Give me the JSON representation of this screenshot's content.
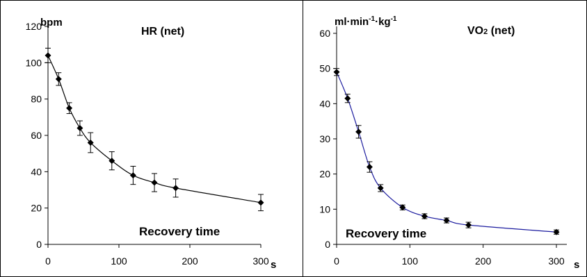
{
  "chart_data": [
    {
      "type": "line",
      "title": "HR (net)",
      "ylabel": "bpm",
      "xlabel": "s",
      "annotation": "Recovery time",
      "xlim": [
        0,
        300
      ],
      "ylim": [
        0,
        120
      ],
      "xticks": [
        0,
        100,
        200,
        300
      ],
      "yticks": [
        0,
        20,
        40,
        60,
        80,
        100,
        120
      ],
      "line_color": "#000000",
      "series": [
        {
          "x": [
            0,
            15,
            30,
            45,
            60,
            90,
            120,
            150,
            180,
            300
          ],
          "y": [
            104,
            91,
            75,
            64,
            56,
            46,
            38,
            34,
            31,
            23
          ],
          "err": [
            4,
            3.5,
            3,
            4,
            5.5,
            5,
            5,
            5,
            5,
            4.5
          ]
        }
      ]
    },
    {
      "type": "line",
      "title_main": "VO",
      "title_sub": "2",
      "title_rest": " (net)",
      "ylabel_parts": [
        "ml·min",
        "-1",
        "·kg",
        "-1"
      ],
      "xlabel": "s",
      "annotation": "Recovery time",
      "xlim": [
        0,
        300
      ],
      "ylim": [
        0,
        60
      ],
      "xticks": [
        0,
        100,
        200,
        300
      ],
      "yticks": [
        0,
        10,
        20,
        30,
        40,
        50,
        60
      ],
      "line_color": "#1a1a9e",
      "series": [
        {
          "x": [
            0,
            15,
            30,
            45,
            60,
            90,
            120,
            150,
            180,
            300
          ],
          "y": [
            49,
            41.5,
            32,
            22,
            16,
            10.5,
            8,
            6.8,
            5.5,
            3.5
          ],
          "err": [
            1,
            1.2,
            1.8,
            1.5,
            1,
            0.7,
            0.7,
            0.7,
            0.8,
            0.6
          ]
        }
      ]
    }
  ]
}
